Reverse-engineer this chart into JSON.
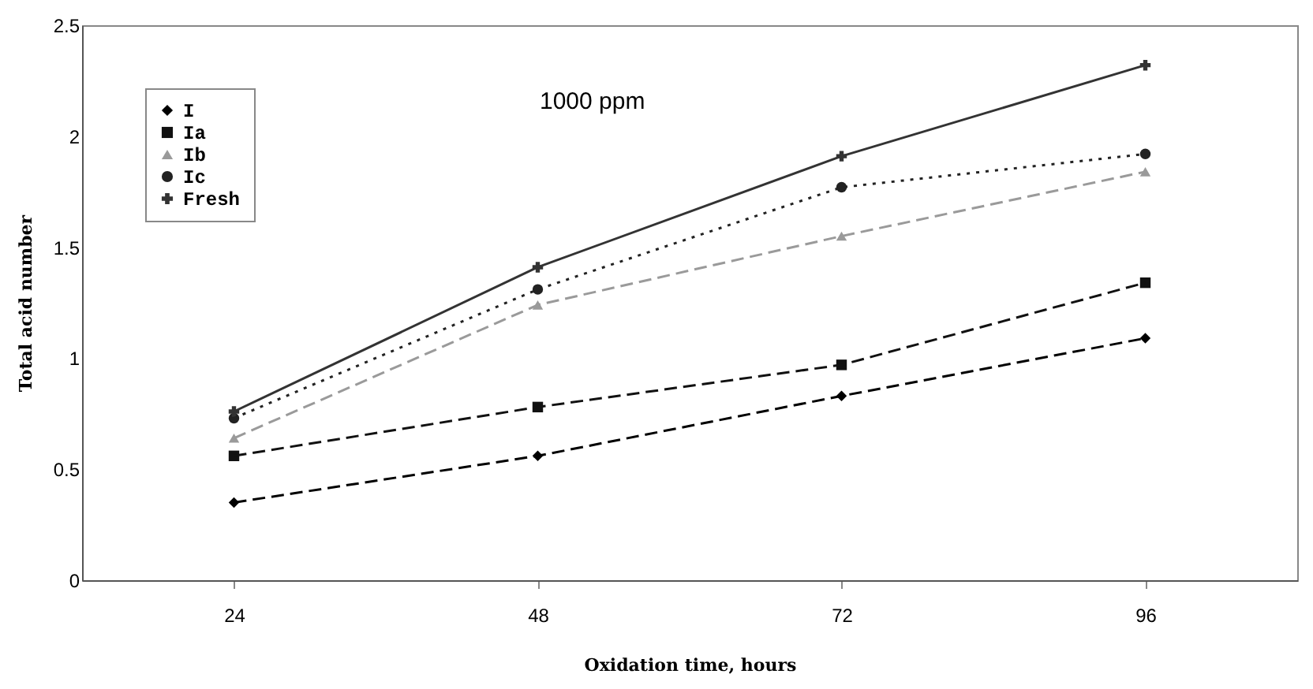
{
  "chart_data": {
    "type": "line",
    "xlabel": "Oxidation time, hours",
    "ylabel": "Total acid number",
    "categories": [
      "24",
      "48",
      "72",
      "96"
    ],
    "series": [
      {
        "name": "I",
        "color": "#000000",
        "marker": "diamond",
        "line_style": "dashed",
        "values": [
          0.35,
          0.56,
          0.83,
          1.09
        ]
      },
      {
        "name": "Ia",
        "color": "#111111",
        "marker": "square",
        "line_style": "dashed",
        "values": [
          0.56,
          0.78,
          0.97,
          1.34
        ]
      },
      {
        "name": "Ib",
        "color": "#9a9a9a",
        "marker": "triangle",
        "line_style": "dashed",
        "values": [
          0.64,
          1.24,
          1.55,
          1.84
        ]
      },
      {
        "name": "Ic",
        "color": "#222222",
        "marker": "circle",
        "line_style": "dotted",
        "values": [
          0.73,
          1.31,
          1.77,
          1.92
        ]
      },
      {
        "name": "Fresh",
        "color": "#333333",
        "marker": "cross",
        "line_style": "solid",
        "values": [
          0.76,
          1.41,
          1.91,
          2.32
        ]
      }
    ],
    "ylim": [
      0,
      2.5
    ],
    "yticks": [
      0,
      0.5,
      1,
      1.5,
      2,
      2.5
    ],
    "grid": false,
    "legend": "top left",
    "annotations": [
      "1000 ppm"
    ]
  }
}
